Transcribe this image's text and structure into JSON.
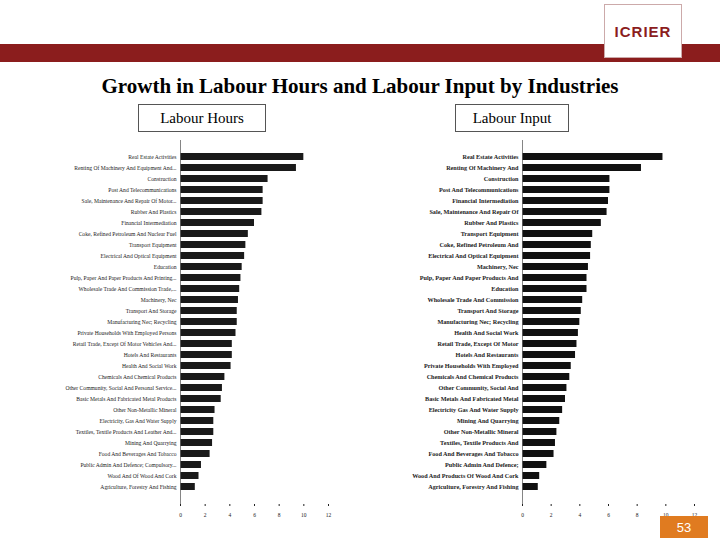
{
  "header": {
    "logo": "ICRIER",
    "title": "Growth in Labour Hours and Labour Input by Industries"
  },
  "chart_data": [
    {
      "type": "bar",
      "orientation": "horizontal",
      "title": "Labour Hours",
      "color": "#1a1a1a",
      "categories": [
        "Real Estate Activities",
        "Renting Of Machinery And Equipment And...",
        "Construction",
        "Post And Telecommunications",
        "Sale, Maintenance And Repair Of Motor...",
        "Rubber And Plastics",
        "Financial Intermediation",
        "Coke, Refined Petroleum And Nuclear Fuel",
        "Transport Equipment",
        "Electrical And Optical Equipment",
        "Education",
        "Pulp, Paper And Paper Products And Printing...",
        "Wholesale Trade And Commission Trade,...",
        "Machinery, Nec",
        "Transport And Storage",
        "Manufacturing Nec; Recycling",
        "Private Households With Employed Persons",
        "Retail Trade, Except Of Motor Vehicles And...",
        "Hotels And Restaurants",
        "Health And Social Work",
        "Chemicals And Chemical Products",
        "Other Community, Social And Personal Service...",
        "Basic Metals And Fabricated Metal Products",
        "Other Non-Metallic Mineral",
        "Electricity, Gas And Water Supply",
        "Textiles, Textile Products And Leather And...",
        "Mining And Quarrying",
        "Food And Beverages And Tobacco",
        "Public Admin And Defence; Compulsory...",
        "Wood And Of Wood And Cork",
        "Agriculture, Forestry And Fishing"
      ],
      "values": [
        10.0,
        9.4,
        7.1,
        6.7,
        6.7,
        6.6,
        6.0,
        5.5,
        5.3,
        5.2,
        5.0,
        4.9,
        4.8,
        4.7,
        4.6,
        4.6,
        4.5,
        4.2,
        4.2,
        4.1,
        3.6,
        3.4,
        3.3,
        2.8,
        2.7,
        2.7,
        2.6,
        2.4,
        1.7,
        1.5,
        1.2
      ],
      "xlim": [
        0,
        12
      ],
      "xticks": [
        0,
        2,
        4,
        6,
        8,
        10,
        12
      ]
    },
    {
      "type": "bar",
      "orientation": "horizontal",
      "title": "Labour Input",
      "color": "#111111",
      "categories": [
        "Real Estate Activities",
        "Renting Of Machinery And",
        "Construction",
        "Post And Telecommunications",
        "Financial Intermediation",
        "Sale, Maintenance And Repair Of",
        "Rubber And Plastics",
        "Transport Equipment",
        "Coke, Refined Petroleum And",
        "Electrical And Optical Equipment",
        "Machinery, Nec",
        "Pulp, Paper And Paper Products And",
        "Education",
        "Wholesale Trade And Commission",
        "Transport And Storage",
        "Manufacturing Nec; Recycling",
        "Health And Social Work",
        "Retail Trade, Except Of Motor",
        "Hotels And Restaurants",
        "Private Households With Employed",
        "Chemicals And Chemical Products",
        "Other Community, Social And",
        "Basic Metals And Fabricated Metal",
        "Electricity Gas And Water Supply",
        "Mining And Quarrying",
        "Other Non-Metallic Mineral",
        "Textiles, Textile Products And",
        "Food And Beverages And Tobacco",
        "Public Admin And Defence;",
        "Wood And Products Of Wood And Cork",
        "Agriculture, Forestry And Fishing"
      ],
      "values": [
        9.8,
        8.3,
        6.1,
        6.1,
        6.0,
        5.9,
        5.5,
        4.9,
        4.8,
        4.75,
        4.6,
        4.5,
        4.5,
        4.2,
        4.1,
        4.0,
        3.9,
        3.8,
        3.7,
        3.4,
        3.3,
        3.1,
        3.0,
        2.8,
        2.6,
        2.4,
        2.3,
        2.2,
        1.7,
        1.2,
        1.1
      ],
      "xlim": [
        0,
        12
      ],
      "xticks": [
        0,
        2,
        4,
        6,
        8,
        10,
        12
      ]
    }
  ],
  "page_number": "53"
}
